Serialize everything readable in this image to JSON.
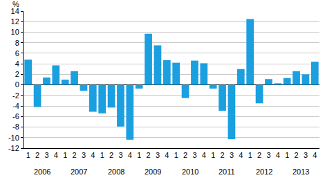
{
  "chart_data": {
    "type": "bar",
    "ylabel": "%",
    "categories": [
      "1",
      "2",
      "3",
      "4",
      "1",
      "2",
      "3",
      "4",
      "1",
      "2",
      "3",
      "4",
      "1",
      "2",
      "3",
      "4",
      "1",
      "2",
      "3",
      "4",
      "1",
      "2",
      "3",
      "4",
      "1",
      "2",
      "3",
      "4",
      "1",
      "2",
      "3",
      "4"
    ],
    "category_groups": [
      "2006",
      "2007",
      "2008",
      "2009",
      "2010",
      "2011",
      "2012",
      "2013"
    ],
    "values": [
      4.8,
      -4.2,
      1.4,
      3.7,
      1.0,
      2.6,
      -1.1,
      -5.1,
      -5.4,
      -4.3,
      -7.9,
      -10.4,
      -0.7,
      9.7,
      7.5,
      4.7,
      4.2,
      -2.5,
      4.6,
      4.1,
      -0.7,
      -4.9,
      -10.3,
      3.0,
      12.5,
      -3.5,
      1.1,
      0.3,
      1.3,
      2.6,
      2.0,
      4.4
    ],
    "color": "#1a9fe0",
    "ylim": [
      -12,
      14
    ],
    "yticks": [
      -12,
      -10,
      -8,
      -6,
      -4,
      -2,
      0,
      2,
      4,
      6,
      8,
      10,
      12,
      14
    ],
    "grid": true
  }
}
